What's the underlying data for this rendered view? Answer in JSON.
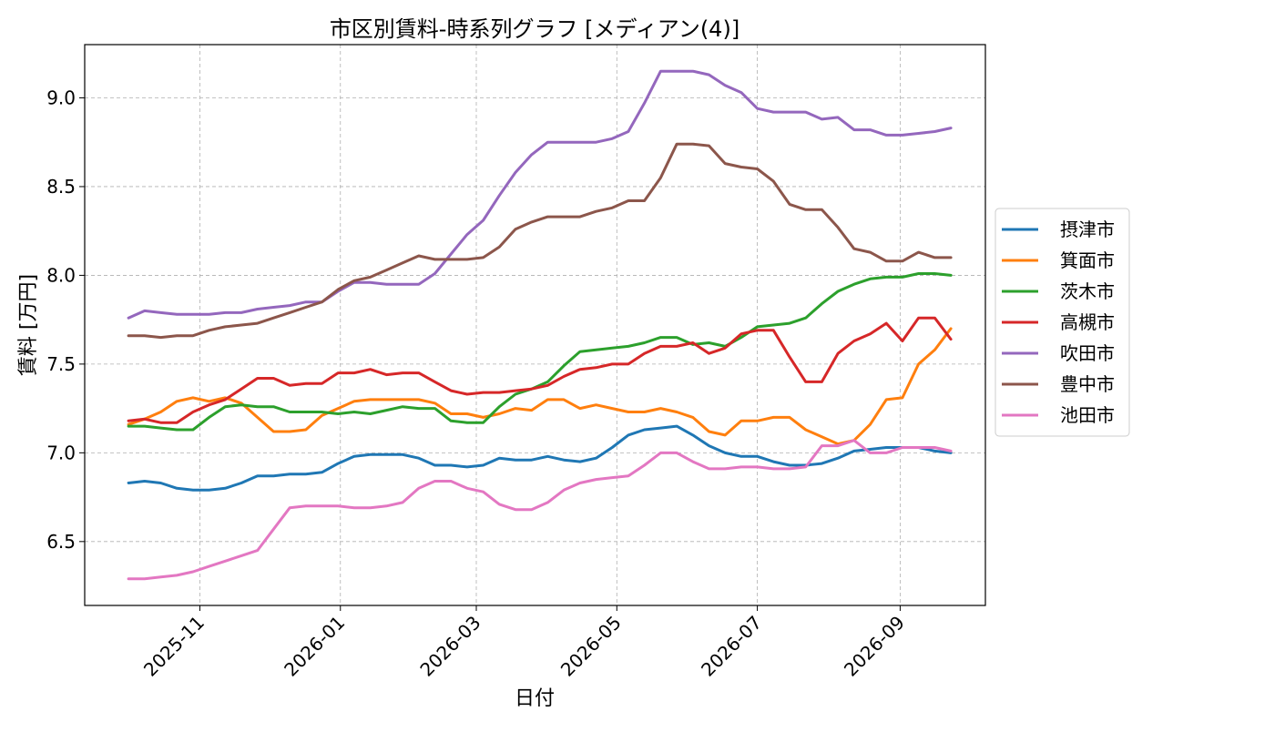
{
  "chart_data": {
    "type": "line",
    "title": "市区別賃料-時系列グラフ [メディアン(4)]",
    "xlabel": "日付",
    "ylabel": "賃料 [万円]",
    "x_range": [
      "2025-09-12",
      "2026-10-08"
    ],
    "ylim": [
      6.14,
      9.3
    ],
    "grid": true,
    "legend_position": "outside-right",
    "x_ticks": [
      {
        "date": "2025-11-01",
        "label": "2025-11"
      },
      {
        "date": "2026-01-01",
        "label": "2026-01"
      },
      {
        "date": "2026-03-01",
        "label": "2026-03"
      },
      {
        "date": "2026-05-01",
        "label": "2026-05"
      },
      {
        "date": "2026-07-01",
        "label": "2026-07"
      },
      {
        "date": "2026-09-01",
        "label": "2026-09"
      }
    ],
    "y_ticks": [
      {
        "value": 6.5,
        "label": "6.5"
      },
      {
        "value": 7.0,
        "label": "7.0"
      },
      {
        "value": 7.5,
        "label": "7.5"
      },
      {
        "value": 8.0,
        "label": "8.0"
      },
      {
        "value": 8.5,
        "label": "8.5"
      },
      {
        "value": 9.0,
        "label": "9.0"
      }
    ],
    "x": [
      "2025-10-01",
      "2025-10-08",
      "2025-10-15",
      "2025-10-22",
      "2025-10-29",
      "2025-11-05",
      "2025-11-12",
      "2025-11-19",
      "2025-11-26",
      "2025-12-03",
      "2025-12-10",
      "2025-12-17",
      "2025-12-24",
      "2025-12-31",
      "2026-01-07",
      "2026-01-14",
      "2026-01-21",
      "2026-01-28",
      "2026-02-04",
      "2026-02-11",
      "2026-02-18",
      "2026-02-25",
      "2026-03-04",
      "2026-03-11",
      "2026-03-18",
      "2026-03-25",
      "2026-04-01",
      "2026-04-08",
      "2026-04-15",
      "2026-04-22",
      "2026-04-29",
      "2026-05-06",
      "2026-05-13",
      "2026-05-20",
      "2026-05-27",
      "2026-06-03",
      "2026-06-10",
      "2026-06-17",
      "2026-06-24",
      "2026-07-01",
      "2026-07-08",
      "2026-07-15",
      "2026-07-22",
      "2026-07-29",
      "2026-08-05",
      "2026-08-12",
      "2026-08-19",
      "2026-08-26",
      "2026-09-02",
      "2026-09-09",
      "2026-09-16",
      "2026-09-23"
    ],
    "series": [
      {
        "name": "摂津市",
        "color": "#1f77b4",
        "values": [
          6.83,
          6.84,
          6.83,
          6.8,
          6.79,
          6.79,
          6.8,
          6.83,
          6.87,
          6.87,
          6.88,
          6.88,
          6.89,
          6.94,
          6.98,
          6.99,
          6.99,
          6.99,
          6.97,
          6.93,
          6.93,
          6.92,
          6.93,
          6.97,
          6.96,
          6.96,
          6.98,
          6.96,
          6.95,
          6.97,
          7.03,
          7.1,
          7.13,
          7.14,
          7.15,
          7.1,
          7.04,
          7.0,
          6.98,
          6.98,
          6.95,
          6.93,
          6.93,
          6.94,
          6.97,
          7.01,
          7.02,
          7.03,
          7.03,
          7.03,
          7.01,
          7.0
        ]
      },
      {
        "name": "箕面市",
        "color": "#ff7f0e",
        "values": [
          7.16,
          7.19,
          7.23,
          7.29,
          7.31,
          7.29,
          7.31,
          7.28,
          7.2,
          7.12,
          7.12,
          7.13,
          7.21,
          7.25,
          7.29,
          7.3,
          7.3,
          7.3,
          7.3,
          7.28,
          7.22,
          7.22,
          7.2,
          7.22,
          7.25,
          7.24,
          7.3,
          7.3,
          7.25,
          7.27,
          7.25,
          7.23,
          7.23,
          7.25,
          7.23,
          7.2,
          7.12,
          7.1,
          7.18,
          7.18,
          7.2,
          7.2,
          7.13,
          7.09,
          7.05,
          7.07,
          7.16,
          7.3,
          7.31,
          7.5,
          7.58,
          7.7
        ]
      },
      {
        "name": "茨木市",
        "color": "#2ca02c",
        "values": [
          7.15,
          7.15,
          7.14,
          7.13,
          7.13,
          7.2,
          7.26,
          7.27,
          7.26,
          7.26,
          7.23,
          7.23,
          7.23,
          7.22,
          7.23,
          7.22,
          7.24,
          7.26,
          7.25,
          7.25,
          7.18,
          7.17,
          7.17,
          7.26,
          7.33,
          7.36,
          7.4,
          7.49,
          7.57,
          7.58,
          7.59,
          7.6,
          7.62,
          7.65,
          7.65,
          7.61,
          7.62,
          7.6,
          7.65,
          7.71,
          7.72,
          7.73,
          7.76,
          7.84,
          7.91,
          7.95,
          7.98,
          7.99,
          7.99,
          8.01,
          8.01,
          8.0
        ]
      },
      {
        "name": "高槻市",
        "color": "#d62728",
        "values": [
          7.18,
          7.19,
          7.17,
          7.17,
          7.23,
          7.27,
          7.3,
          7.36,
          7.42,
          7.42,
          7.38,
          7.39,
          7.39,
          7.45,
          7.45,
          7.47,
          7.44,
          7.45,
          7.45,
          7.4,
          7.35,
          7.33,
          7.34,
          7.34,
          7.35,
          7.36,
          7.38,
          7.43,
          7.47,
          7.48,
          7.5,
          7.5,
          7.56,
          7.6,
          7.6,
          7.62,
          7.56,
          7.59,
          7.67,
          7.69,
          7.69,
          7.54,
          7.4,
          7.4,
          7.56,
          7.63,
          7.67,
          7.73,
          7.63,
          7.76,
          7.76,
          7.64
        ]
      },
      {
        "name": "吹田市",
        "color": "#9467bd",
        "values": [
          7.76,
          7.8,
          7.79,
          7.78,
          7.78,
          7.78,
          7.79,
          7.79,
          7.81,
          7.82,
          7.83,
          7.85,
          7.85,
          7.91,
          7.96,
          7.96,
          7.95,
          7.95,
          7.95,
          8.01,
          8.12,
          8.23,
          8.31,
          8.45,
          8.58,
          8.68,
          8.75,
          8.75,
          8.75,
          8.75,
          8.77,
          8.81,
          8.97,
          9.15,
          9.15,
          9.15,
          9.13,
          9.07,
          9.03,
          8.94,
          8.92,
          8.92,
          8.92,
          8.88,
          8.89,
          8.82,
          8.82,
          8.79,
          8.79,
          8.8,
          8.81,
          8.83
        ]
      },
      {
        "name": "豊中市",
        "color": "#8c564b",
        "values": [
          7.66,
          7.66,
          7.65,
          7.66,
          7.66,
          7.69,
          7.71,
          7.72,
          7.73,
          7.76,
          7.79,
          7.82,
          7.85,
          7.92,
          7.97,
          7.99,
          8.03,
          8.07,
          8.11,
          8.09,
          8.09,
          8.09,
          8.1,
          8.16,
          8.26,
          8.3,
          8.33,
          8.33,
          8.33,
          8.36,
          8.38,
          8.42,
          8.42,
          8.55,
          8.74,
          8.74,
          8.73,
          8.63,
          8.61,
          8.6,
          8.53,
          8.4,
          8.37,
          8.37,
          8.27,
          8.15,
          8.13,
          8.08,
          8.08,
          8.13,
          8.1,
          8.1
        ]
      },
      {
        "name": "池田市",
        "color": "#e377c2",
        "values": [
          6.29,
          6.29,
          6.3,
          6.31,
          6.33,
          6.36,
          6.39,
          6.42,
          6.45,
          6.57,
          6.69,
          6.7,
          6.7,
          6.7,
          6.69,
          6.69,
          6.7,
          6.72,
          6.8,
          6.84,
          6.84,
          6.8,
          6.78,
          6.71,
          6.68,
          6.68,
          6.72,
          6.79,
          6.83,
          6.85,
          6.86,
          6.87,
          6.93,
          7.0,
          7.0,
          6.95,
          6.91,
          6.91,
          6.92,
          6.92,
          6.91,
          6.91,
          6.92,
          7.04,
          7.04,
          7.07,
          7.0,
          7.0,
          7.03,
          7.03,
          7.03,
          7.01
        ]
      }
    ]
  }
}
